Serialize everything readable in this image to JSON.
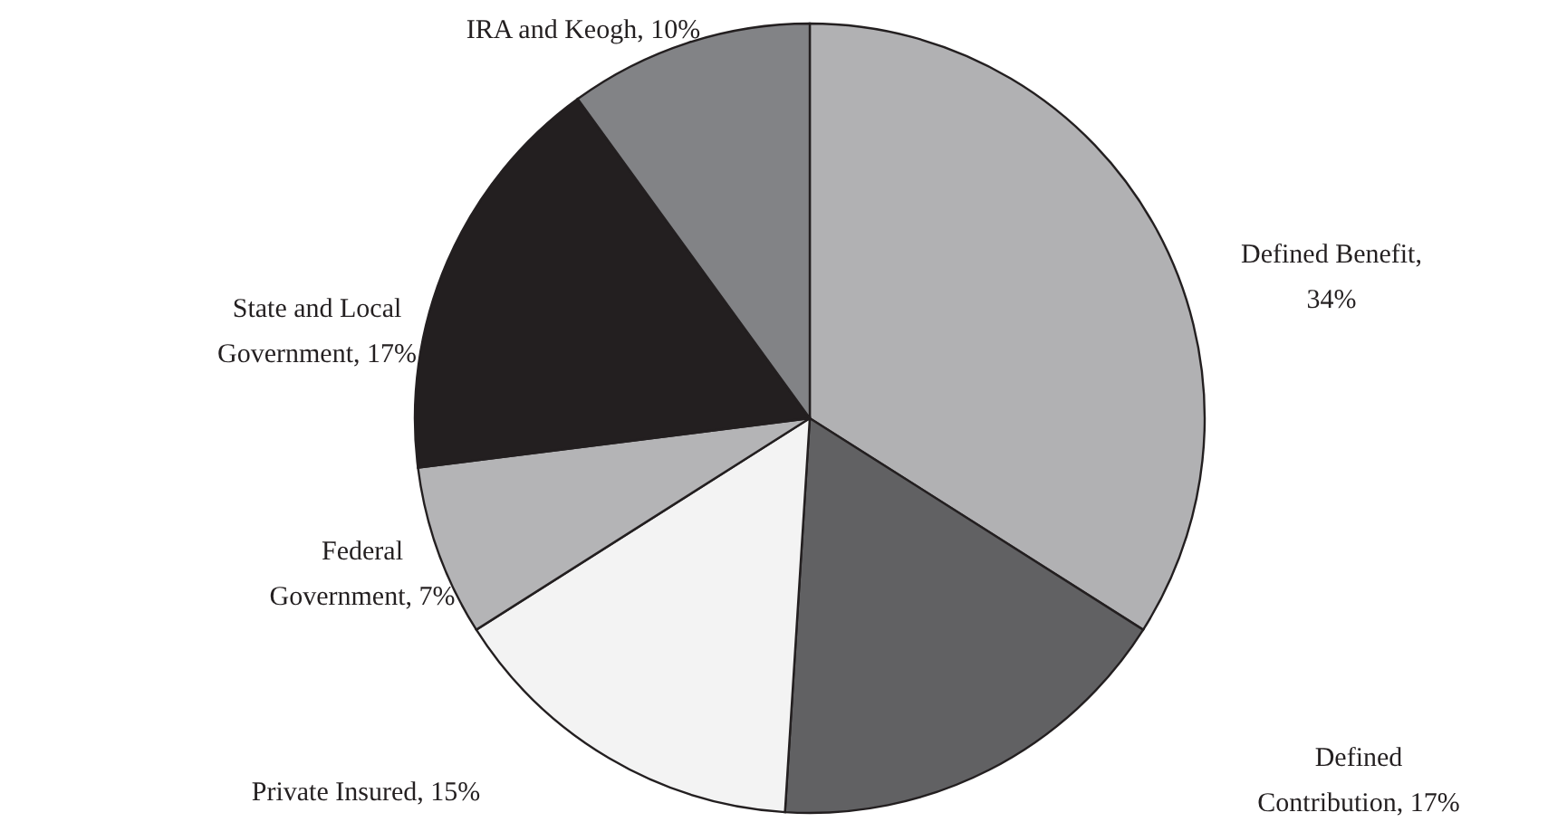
{
  "chart_data": {
    "type": "pie",
    "categories": [
      "Defined Benefit, 34%",
      "Defined Contribution, 17%",
      "Private Insured, 15%",
      "Federal Government, 7%",
      "State and Local Government, 17%",
      "IRA and Keogh, 10%"
    ],
    "values": [
      34,
      17,
      15,
      7,
      17,
      10
    ],
    "colors": [
      "#b1b1b3",
      "#616163",
      "#f3f3f3",
      "#b4b4b6",
      "#231f20",
      "#828386"
    ]
  }
}
